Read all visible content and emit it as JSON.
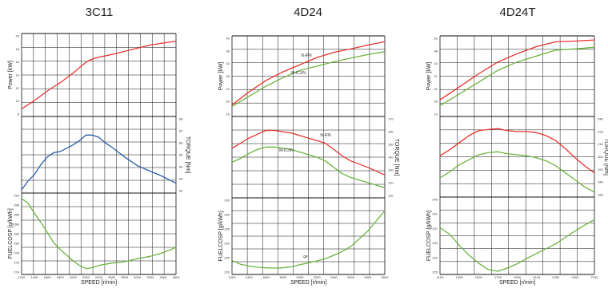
{
  "chart_data": [
    {
      "type": "line",
      "title": "3C11",
      "xlabel": "SPEED [r/min]",
      "x_ticks": [
        "1200",
        "1400",
        "1600",
        "1800",
        "2000",
        "2200",
        "2400",
        "2600",
        "2800",
        "3000",
        "3200",
        "3400",
        "3600"
      ],
      "xlim": [
        1200,
        3600
      ],
      "panels": [
        {
          "name": "power",
          "ylabel": "Power [kW]",
          "yticks": [
            "20",
            "18",
            "16",
            "14",
            "12",
            "10",
            "8"
          ],
          "ylim": [
            7,
            20
          ],
          "series": [
            {
              "color": "#e8332f",
              "x": [
                1200,
                1400,
                1600,
                1800,
                2000,
                2200,
                2300,
                2400,
                2600,
                2800,
                3000,
                3200,
                3400,
                3600
              ],
              "y": [
                8.2,
                9.5,
                11.0,
                12.3,
                13.8,
                15.5,
                16.0,
                16.3,
                16.7,
                17.2,
                17.7,
                18.2,
                18.5,
                18.8
              ]
            }
          ]
        },
        {
          "name": "torque",
          "ylabel": "TORQUE [Nm]",
          "ylabel_side": "right",
          "yticks": [
            "68",
            "67",
            "66",
            "65",
            "64",
            "63",
            "62"
          ],
          "yticks_side": "right",
          "ylim": [
            61.5,
            68.5
          ],
          "series": [
            {
              "color": "#2a5ca8",
              "x": [
                1200,
                1300,
                1400,
                1500,
                1600,
                1700,
                1800,
                1900,
                2000,
                2100,
                2200,
                2300,
                2400,
                2500,
                2600,
                2800,
                3000,
                3200,
                3400,
                3600
              ],
              "y": [
                61.8,
                62.6,
                63.2,
                64.1,
                64.8,
                65.2,
                65.3,
                65.6,
                65.9,
                66.3,
                66.8,
                66.8,
                66.6,
                66.1,
                65.7,
                64.8,
                64.0,
                63.5,
                63.0,
                62.4
              ]
            }
          ]
        },
        {
          "name": "fuel",
          "ylabel": "FUELCOSP [g/kWh]",
          "yticks": [
            "290",
            "288",
            "286",
            "284",
            "282",
            "280",
            "278",
            "276",
            "274"
          ],
          "ylim": [
            273,
            291
          ],
          "series": [
            {
              "color": "#6cb33f",
              "x": [
                1200,
                1300,
                1400,
                1500,
                1600,
                1700,
                1800,
                1900,
                2000,
                2100,
                2200,
                2300,
                2400,
                2600,
                2800,
                3000,
                3200,
                3400,
                3600
              ],
              "y": [
                289.8,
                288.8,
                286.5,
                284.5,
                282.3,
                280.0,
                278.5,
                277.3,
                276.0,
                275.0,
                274.3,
                274.5,
                275.0,
                275.5,
                275.8,
                276.5,
                277.0,
                277.8,
                279.0
              ]
            }
          ]
        }
      ]
    },
    {
      "type": "line",
      "title": "4D24",
      "xlabel": "SPEED [r/min]",
      "x_ticks": [
        "1200",
        "1400",
        "1600",
        "1800",
        "2000",
        "2200",
        "2400",
        "2600",
        "2800",
        "3000"
      ],
      "xlim": [
        1200,
        3000
      ],
      "panels": [
        {
          "name": "power",
          "ylabel": "Power [kW]",
          "yticks": [
            "40",
            "36",
            "32",
            "28",
            "24",
            "20",
            "16"
          ],
          "ylim": [
            14,
            42
          ],
          "series": [
            {
              "name": "N-IFN",
              "color": "#e8332f",
              "x": [
                1200,
                1400,
                1600,
                1800,
                2000,
                2200,
                2400,
                2600,
                2800,
                3000
              ],
              "y": [
                18.0,
                22.5,
                26.5,
                29.5,
                32.0,
                34.5,
                36.3,
                37.5,
                38.8,
                40.0
              ]
            },
            {
              "name": "M-ICXN",
              "color": "#6cb33f",
              "x": [
                1200,
                1400,
                1600,
                1800,
                2000,
                2200,
                2400,
                2600,
                2800,
                3000
              ],
              "y": [
                17.5,
                21.0,
                24.5,
                27.5,
                30.0,
                31.5,
                33.0,
                34.3,
                35.5,
                36.5
              ]
            }
          ]
        },
        {
          "name": "torque",
          "ylabel": "TORQUE [Nm]",
          "ylabel_side": "right",
          "yticks": [
            "170",
            "160",
            "150",
            "140",
            "130",
            "120",
            "110"
          ],
          "yticks_side": "right",
          "ylim": [
            108,
            172
          ],
          "series": [
            {
              "name": "N-IFN",
              "color": "#e8332f",
              "x": [
                1200,
                1300,
                1400,
                1500,
                1600,
                1700,
                1800,
                1900,
                2000,
                2100,
                2200,
                2300,
                2400,
                2500,
                2600,
                2800,
                3000
              ],
              "y": [
                147,
                151,
                155,
                158,
                161,
                161,
                160,
                159,
                157,
                155,
                153,
                151,
                146,
                141,
                137,
                132,
                126
              ]
            },
            {
              "name": "M-ICXN",
              "color": "#6cb33f",
              "x": [
                1200,
                1300,
                1400,
                1500,
                1600,
                1700,
                1800,
                1900,
                2000,
                2100,
                2200,
                2300,
                2400,
                2500,
                2600,
                2800,
                3000
              ],
              "y": [
                136,
                139,
                143,
                146,
                148,
                148,
                147,
                146,
                144,
                142,
                140,
                137,
                132,
                127,
                124,
                120,
                116
              ]
            }
          ]
        },
        {
          "name": "fuel",
          "ylabel": "FUELCOSP [g/kWh]",
          "yticks": [
            "245",
            "240",
            "235",
            "230",
            "225",
            "220"
          ],
          "ylim": [
            217,
            247
          ],
          "series": [
            {
              "name": "ge",
              "color": "#6cb33f",
              "x": [
                1200,
                1300,
                1400,
                1500,
                1600,
                1700,
                1800,
                1900,
                2000,
                2100,
                2200,
                2300,
                2400,
                2500,
                2600,
                2800,
                3000
              ],
              "y": [
                222.5,
                221.0,
                220.3,
                219.8,
                219.6,
                219.5,
                219.6,
                220.0,
                220.8,
                221.5,
                222.3,
                223.2,
                224.5,
                226.0,
                228.0,
                234.0,
                242.0
              ]
            }
          ]
        }
      ],
      "annotations": [
        "N-IFN",
        "M-ICXN",
        "N-IFN",
        "M-ICXN",
        "ge"
      ]
    },
    {
      "type": "line",
      "title": "4D24T",
      "xlabel": "SPEED [r/min]",
      "x_ticks": [
        "1100",
        "1300",
        "1500",
        "1700",
        "1900",
        "2100",
        "2300",
        "2500",
        "2700"
      ],
      "xlim": [
        1100,
        2700
      ],
      "panels": [
        {
          "name": "power",
          "ylabel": "Power [kW]",
          "yticks": [
            "51",
            "48",
            "42",
            "37",
            "31",
            "25",
            "19"
          ],
          "ylim": [
            17,
            51
          ],
          "series": [
            {
              "color": "#e8332f",
              "x": [
                1100,
                1300,
                1500,
                1700,
                1900,
                2100,
                2300,
                2500,
                2700
              ],
              "y": [
                24.0,
                29.5,
                35.0,
                40.0,
                43.5,
                46.5,
                48.5,
                48.8,
                49.3
              ]
            },
            {
              "color": "#6cb33f",
              "x": [
                1100,
                1300,
                1500,
                1700,
                1900,
                2100,
                2300,
                2500,
                2700
              ],
              "y": [
                21.5,
                26.5,
                31.5,
                36.5,
                40.0,
                42.5,
                45.0,
                45.5,
                46.2
              ]
            }
          ]
        },
        {
          "name": "torque",
          "ylabel": "TORQUE [Nm]",
          "ylabel_side": "right",
          "yticks": [
            "240",
            "228",
            "216",
            "204",
            "192",
            "180",
            "168"
          ],
          "yticks_side": "right",
          "ylim": [
            164,
            244
          ],
          "series": [
            {
              "color": "#e8332f",
              "x": [
                1100,
                1200,
                1300,
                1400,
                1500,
                1600,
                1700,
                1800,
                1900,
                2000,
                2100,
                2200,
                2300,
                2400,
                2500,
                2600,
                2700
              ],
              "y": [
                205,
                211,
                218,
                225,
                230,
                231,
                232,
                230,
                229,
                229,
                228,
                225,
                220,
                212,
                203,
                195,
                188
              ]
            },
            {
              "color": "#6cb33f",
              "x": [
                1100,
                1200,
                1300,
                1400,
                1500,
                1600,
                1700,
                1800,
                1900,
                2000,
                2100,
                2200,
                2300,
                2400,
                2500,
                2600,
                2700
              ],
              "y": [
                183,
                189,
                196,
                201,
                206,
                208,
                209,
                207,
                206,
                205,
                203,
                200,
                195,
                188,
                181,
                174,
                169
              ]
            }
          ]
        },
        {
          "name": "fuel",
          "ylabel": "FUELCOSP [g/kWh]",
          "yticks": [
            "245",
            "241",
            "237",
            "233",
            "229",
            "225"
          ],
          "ylim": [
            223,
            247
          ],
          "series": [
            {
              "color": "#6cb33f",
              "x": [
                1100,
                1200,
                1300,
                1400,
                1500,
                1600,
                1700,
                1800,
                1900,
                2000,
                2100,
                2200,
                2300,
                2400,
                2500,
                2600,
                2700
              ],
              "y": [
                237.5,
                235.5,
                232.0,
                229.0,
                226.5,
                224.5,
                224.0,
                225.0,
                226.3,
                228.0,
                229.5,
                231.0,
                232.5,
                234.5,
                236.5,
                238.3,
                240.0
              ]
            }
          ]
        }
      ]
    }
  ]
}
